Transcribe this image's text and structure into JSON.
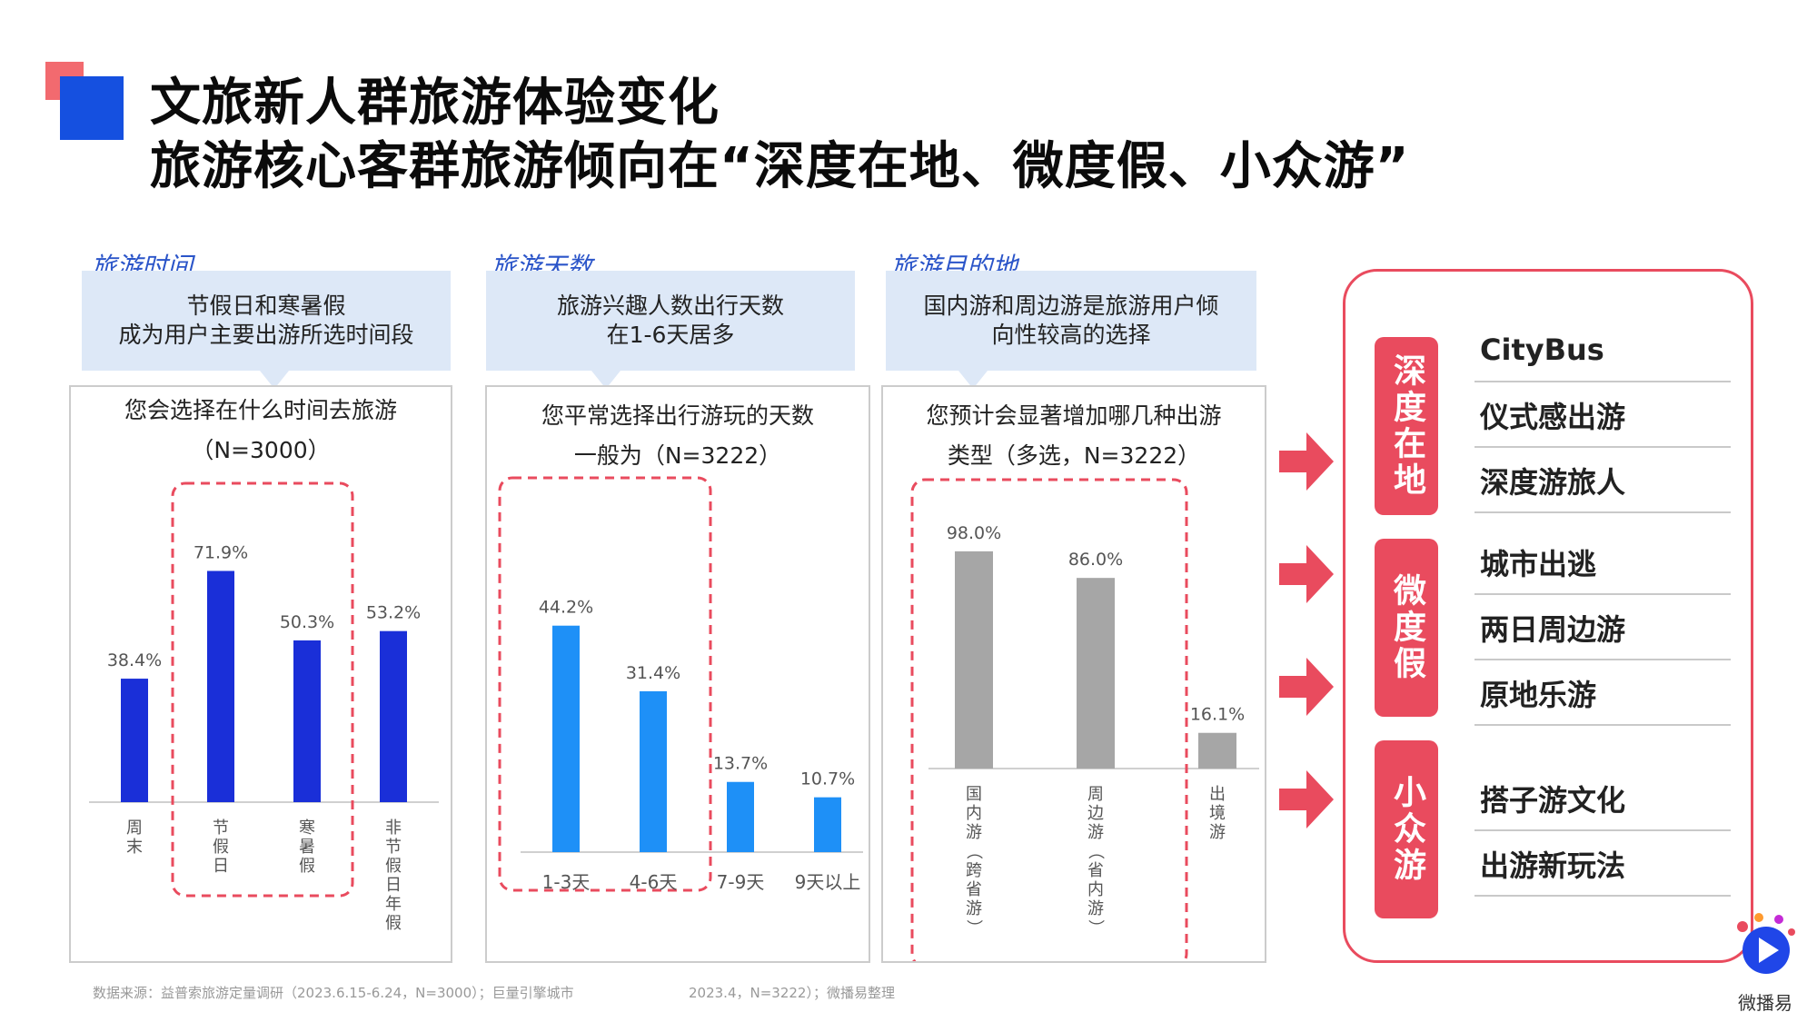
{
  "header": {
    "title_line1": "文旅新人群旅游体验变化",
    "title_line2": "旅游核心客群旅游倾向在“深度在地、微度假、小众游”"
  },
  "sections": [
    {
      "label": "旅游时间",
      "callout": "节假日和寒暑假\n成为用户主要出游所选时间段",
      "question": "您会选择在什么时间去旅游\n（N=3000）"
    },
    {
      "label": "旅游天数",
      "callout": "旅游兴趣人数出行天数\n在1-6天居多",
      "question": "您平常选择出行游玩的天数\n一般为（N=3222）"
    },
    {
      "label": "旅游目的地",
      "callout": "国内游和周边游是旅游用户倾\n向性较高的选择",
      "question": "您预计会显著增加哪几种出游\n类型（多选，N=3222）"
    }
  ],
  "chart_data": [
    {
      "type": "bar",
      "categories": [
        "周末",
        "节假日",
        "寒暑假",
        "非节假日年假"
      ],
      "values": [
        38.4,
        71.9,
        50.3,
        53.2
      ],
      "value_labels": [
        "38.4%",
        "71.9%",
        "50.3%",
        "53.2%"
      ],
      "ylim": [
        0,
        100
      ],
      "color": "#1a2fd8",
      "highlighted_categories": [
        "节假日",
        "寒暑假"
      ]
    },
    {
      "type": "bar",
      "categories": [
        "1-3天",
        "4-6天",
        "7-9天",
        "9天以上"
      ],
      "values": [
        44.2,
        31.4,
        13.7,
        10.7
      ],
      "value_labels": [
        "44.2%",
        "31.4%",
        "13.7%",
        "10.7%"
      ],
      "ylim": [
        0,
        100
      ],
      "color": "#1e90f7",
      "highlighted_categories": [
        "1-3天",
        "4-6天"
      ]
    },
    {
      "type": "bar",
      "categories": [
        "国内游（跨省游）",
        "周边游（省内游）",
        "出境游"
      ],
      "values": [
        98.0,
        86.0,
        16.1
      ],
      "value_labels": [
        "98.0%",
        "86.0%",
        "16.1%"
      ],
      "ylim": [
        0,
        100
      ],
      "color": "#a6a6a6",
      "highlighted_categories": [
        "国内游（跨省游）",
        "周边游（省内游）"
      ]
    }
  ],
  "summary": {
    "groups": [
      {
        "tag": "深度在地",
        "items": [
          "CityBus",
          "仪式感出游",
          "深度游旅人"
        ]
      },
      {
        "tag": "微度假",
        "items": [
          "城市出逃",
          "两日周边游",
          "原地乐游"
        ]
      },
      {
        "tag": "小众游",
        "items": [
          "搭子游文化",
          "出游新玩法"
        ]
      }
    ]
  },
  "footnote": {
    "part1": "数据来源：益普索旅游定量调研（2023.6.15-6.24，N=3000）；巨量引擎城市",
    "part2": "2023.4，N=3222）；微播易整理"
  },
  "logo": {
    "text": "微播易"
  },
  "colors": {
    "accent_red": "#e94b5e",
    "accent_blue": "#1550e0",
    "dash_red": "#e94b5e"
  }
}
